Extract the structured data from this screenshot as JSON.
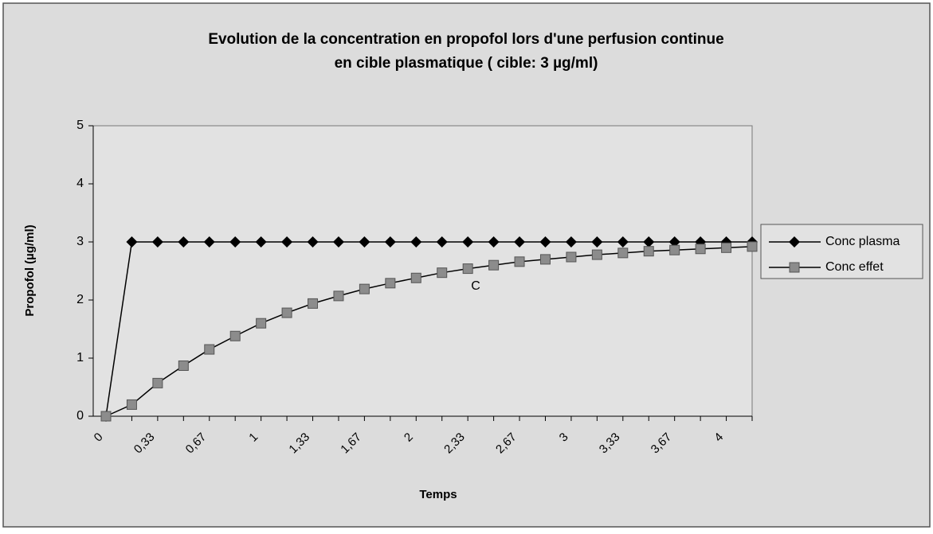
{
  "chart_data": {
    "type": "line",
    "title": [
      "Evolution de la concentration en propofol lors d'une perfusion continue",
      "en cible plasmatique ( cible: 3 µg/ml)"
    ],
    "x_label": "Temps",
    "y_label": "Propofol (µg/ml)",
    "categories": [
      "0",
      null,
      "0,33",
      null,
      "0,67",
      null,
      "1",
      null,
      "1,33",
      null,
      "1,67",
      null,
      "2",
      null,
      "2,33",
      null,
      "2,67",
      null,
      "3",
      null,
      "3,33",
      null,
      "3,67",
      null,
      "4",
      null
    ],
    "series": [
      {
        "name": "Conc plasma",
        "color": "#000000",
        "marker": "diamond",
        "values": [
          0,
          3,
          3,
          3,
          3,
          3,
          3,
          3,
          3,
          3,
          3,
          3,
          3,
          3,
          3,
          3,
          3,
          3,
          3,
          3,
          3,
          3,
          3,
          3,
          3,
          3
        ]
      },
      {
        "name": "Conc effet",
        "color": "#8c8c8c",
        "marker": "square",
        "values": [
          0,
          0.2,
          0.57,
          0.87,
          1.15,
          1.38,
          1.6,
          1.78,
          1.94,
          2.07,
          2.19,
          2.29,
          2.38,
          2.47,
          2.54,
          2.6,
          2.66,
          2.7,
          2.74,
          2.78,
          2.81,
          2.84,
          2.86,
          2.88,
          2.9,
          2.92
        ]
      }
    ],
    "annotation": "C",
    "ylim": [
      0,
      5
    ],
    "yticks": [
      0,
      1,
      2,
      3,
      4,
      5
    ],
    "grid": false,
    "legend": "right"
  }
}
